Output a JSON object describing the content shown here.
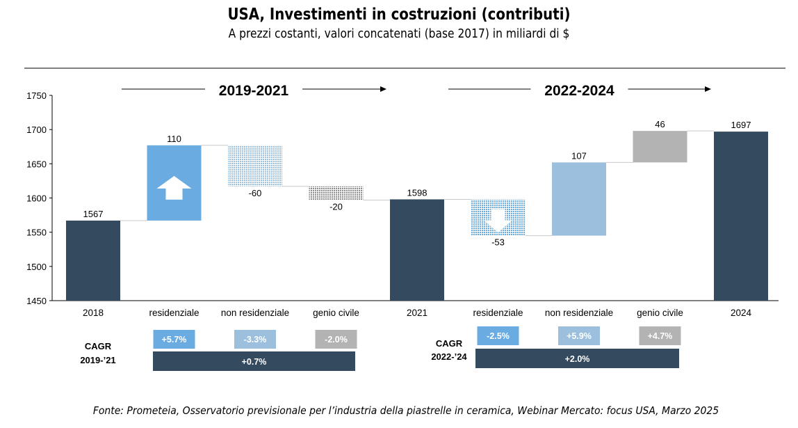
{
  "title": "USA, Investimenti in costruzioni (contributi)",
  "subtitle": "A prezzi costanti, valori concatenati (base 2017) in miliardi di $",
  "source": "Fonte: Prometeia, Osservatorio previsionale per l’industria della piastrelle in ceramica,  Webinar Mercato: focus USA, Marzo 2025",
  "colors": {
    "total": "#344a5f",
    "residential": "#6aace2",
    "non_residential": "#9bbfdc",
    "civil": "#b3b3b3"
  },
  "chart_data": {
    "type": "waterfall",
    "ylim": [
      1450,
      1750
    ],
    "yticks": [
      1450,
      1500,
      1550,
      1600,
      1650,
      1700,
      1750
    ],
    "grid": false,
    "periods": [
      {
        "label": "2019-2021"
      },
      {
        "label": "2022-2024"
      }
    ],
    "bars": [
      {
        "category": "2018",
        "kind": "total",
        "value": 1567,
        "label": "1567",
        "color": "#344a5f",
        "style": "solid"
      },
      {
        "category": "residenziale",
        "kind": "delta",
        "value": 110,
        "label": "110",
        "color": "#6aace2",
        "style": "solid",
        "arrow": "up"
      },
      {
        "category": "non residenziale",
        "kind": "delta",
        "value": -60,
        "label": "-60",
        "color": "#9bbfdc",
        "style": "dotted"
      },
      {
        "category": "genio civile",
        "kind": "delta",
        "value": -20,
        "label": "-20",
        "color": "#8c8c8c",
        "style": "dotted"
      },
      {
        "category": "2021",
        "kind": "total",
        "value": 1598,
        "label": "1598",
        "color": "#344a5f",
        "style": "solid"
      },
      {
        "category": "residenziale",
        "kind": "delta",
        "value": -53,
        "label": "-53",
        "color": "#6aace2",
        "style": "dotted",
        "arrow": "down"
      },
      {
        "category": "non residenziale",
        "kind": "delta",
        "value": 107,
        "label": "107",
        "color": "#9bbfdc",
        "style": "solid"
      },
      {
        "category": "genio civile",
        "kind": "delta",
        "value": 46,
        "label": "46",
        "color": "#b3b3b3",
        "style": "solid"
      },
      {
        "category": "2024",
        "kind": "total",
        "value": 1697,
        "label": "1697",
        "color": "#344a5f",
        "style": "solid"
      }
    ],
    "cagr": [
      {
        "label_line1": "CAGR",
        "label_line2": "2019-’21",
        "items": [
          {
            "value": "+5.7%",
            "category_index": 1,
            "color": "#6aace2"
          },
          {
            "value": "-3.3%",
            "category_index": 2,
            "color": "#9bbfdc"
          },
          {
            "value": "-2.0%",
            "category_index": 3,
            "color": "#b3b3b3"
          }
        ],
        "total": {
          "value": "+0.7%",
          "color": "#344a5f"
        }
      },
      {
        "label_line1": "CAGR",
        "label_line2": "2022-’24",
        "items": [
          {
            "value": "-2.5%",
            "category_index": 5,
            "color": "#6aace2"
          },
          {
            "value": "+5.9%",
            "category_index": 6,
            "color": "#9bbfdc"
          },
          {
            "value": "+4.7%",
            "category_index": 7,
            "color": "#b3b3b3"
          }
        ],
        "total": {
          "value": "+2.0%",
          "color": "#344a5f"
        }
      }
    ]
  }
}
